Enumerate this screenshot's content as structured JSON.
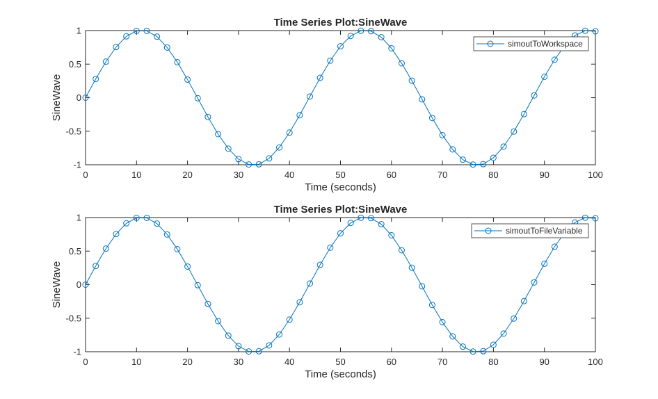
{
  "figure": {
    "background": "#ffffff",
    "axis_color": "#262626",
    "line_color": "#0072bd"
  },
  "chart_data": [
    {
      "type": "line",
      "title": "Time Series Plot:SineWave",
      "xlabel": "Time (seconds)",
      "ylabel": "SineWave",
      "xlim": [
        0,
        100
      ],
      "ylim": [
        -1,
        1
      ],
      "xticks": [
        0,
        10,
        20,
        30,
        40,
        50,
        60,
        70,
        80,
        90,
        100
      ],
      "yticks": [
        -1,
        -0.5,
        0,
        0.5,
        1
      ],
      "xtick_labels": [
        "0",
        "10",
        "20",
        "30",
        "40",
        "50",
        "60",
        "70",
        "80",
        "90",
        "100"
      ],
      "ytick_labels": [
        "-1",
        "-0.5",
        "0",
        "0.5",
        "1"
      ],
      "grid": false,
      "legend_placement": "top-right",
      "series": [
        {
          "name": "simoutToWorkspace",
          "color": "#0072bd",
          "marker": "circle",
          "x": [
            0,
            2,
            4,
            6,
            8,
            10,
            12,
            14,
            16,
            18,
            20,
            22,
            24,
            26,
            28,
            30,
            32,
            34,
            36,
            38,
            40,
            42,
            44,
            46,
            48,
            50,
            52,
            54,
            56,
            58,
            60,
            62,
            64,
            66,
            68,
            70,
            72,
            74,
            76,
            78,
            80,
            82,
            84,
            86,
            88,
            90,
            92,
            94,
            96,
            98,
            100
          ],
          "y": [
            0,
            0.279,
            0.537,
            0.755,
            0.914,
            0.996,
            0.995,
            0.91,
            0.748,
            0.529,
            0.27,
            -0.008,
            -0.287,
            -0.544,
            -0.76,
            -0.916,
            -0.996,
            -0.993,
            -0.905,
            -0.742,
            -0.521,
            -0.262,
            0.017,
            0.295,
            0.552,
            0.766,
            0.92,
            0.997,
            0.992,
            0.901,
            0.736,
            0.513,
            0.253,
            -0.025,
            -0.303,
            -0.559,
            -0.771,
            -0.924,
            -0.997,
            -0.991,
            -0.896,
            -0.729,
            -0.505,
            -0.245,
            0.034,
            0.312,
            0.566,
            0.777,
            0.927,
            0.998,
            0.989
          ]
        }
      ]
    },
    {
      "type": "line",
      "title": "Time Series Plot:SineWave",
      "xlabel": "Time (seconds)",
      "ylabel": "SineWave",
      "xlim": [
        0,
        100
      ],
      "ylim": [
        -1,
        1
      ],
      "xticks": [
        0,
        10,
        20,
        30,
        40,
        50,
        60,
        70,
        80,
        90,
        100
      ],
      "yticks": [
        -1,
        -0.5,
        0,
        0.5,
        1
      ],
      "xtick_labels": [
        "0",
        "10",
        "20",
        "30",
        "40",
        "50",
        "60",
        "70",
        "80",
        "90",
        "100"
      ],
      "ytick_labels": [
        "-1",
        "-0.5",
        "0",
        "0.5",
        "1"
      ],
      "grid": false,
      "legend_placement": "top-right",
      "series": [
        {
          "name": "simoutToFileVariable",
          "color": "#0072bd",
          "marker": "circle",
          "x": [
            0,
            2,
            4,
            6,
            8,
            10,
            12,
            14,
            16,
            18,
            20,
            22,
            24,
            26,
            28,
            30,
            32,
            34,
            36,
            38,
            40,
            42,
            44,
            46,
            48,
            50,
            52,
            54,
            56,
            58,
            60,
            62,
            64,
            66,
            68,
            70,
            72,
            74,
            76,
            78,
            80,
            82,
            84,
            86,
            88,
            90,
            92,
            94,
            96,
            98,
            100
          ],
          "y": [
            0,
            0.279,
            0.537,
            0.755,
            0.914,
            0.996,
            0.995,
            0.91,
            0.748,
            0.529,
            0.27,
            -0.008,
            -0.287,
            -0.544,
            -0.76,
            -0.916,
            -0.996,
            -0.993,
            -0.905,
            -0.742,
            -0.521,
            -0.262,
            0.017,
            0.295,
            0.552,
            0.766,
            0.92,
            0.997,
            0.992,
            0.901,
            0.736,
            0.513,
            0.253,
            -0.025,
            -0.303,
            -0.559,
            -0.771,
            -0.924,
            -0.997,
            -0.991,
            -0.896,
            -0.729,
            -0.505,
            -0.245,
            0.034,
            0.312,
            0.566,
            0.777,
            0.927,
            0.998,
            0.989
          ]
        }
      ]
    }
  ]
}
